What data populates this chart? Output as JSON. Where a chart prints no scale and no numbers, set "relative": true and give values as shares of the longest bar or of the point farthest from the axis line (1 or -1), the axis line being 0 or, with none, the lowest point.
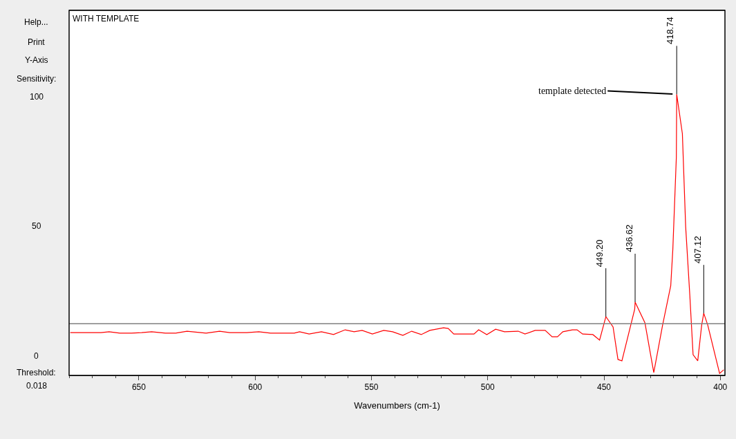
{
  "chart_data": {
    "type": "line",
    "title": "WITH TEMPLATE",
    "xlabel": "Wavenumbers (cm-1)",
    "relative": true,
    "xlim": [
      680,
      398
    ],
    "xticks": [
      650,
      600,
      550,
      500,
      450,
      400
    ],
    "marker": "none",
    "line_style": "solid",
    "x": [
      679.5,
      666.3,
      662.8,
      658.2,
      653.2,
      648.8,
      644.5,
      638.6,
      634.2,
      629.3,
      621.1,
      615.3,
      610.9,
      603.6,
      598.4,
      593.4,
      583.2,
      580.9,
      576.8,
      571.5,
      566.3,
      561.3,
      557.5,
      554.0,
      549.6,
      544.7,
      540.9,
      536.5,
      532.7,
      528.6,
      524.9,
      519.0,
      517.0,
      514.6,
      510.3,
      505.9,
      503.9,
      500.4,
      496.6,
      492.8,
      486.9,
      484.0,
      479.6,
      475.3,
      472.3,
      470.0,
      467.7,
      463.6,
      461.6,
      459.2,
      454.8,
      451.9,
      449.2,
      446.1,
      444.0,
      442.3,
      436.8,
      436.62,
      432.4,
      428.6,
      424.8,
      421.3,
      420.4,
      418.9,
      418.74,
      416.3,
      414.9,
      413.1,
      411.7,
      409.7,
      408.0,
      407.12,
      405.4,
      400.3,
      398.5
    ],
    "series": [
      {
        "color": "#ff0000",
        "values": [
          0.148,
          0.148,
          0.151,
          0.146,
          0.146,
          0.148,
          0.151,
          0.146,
          0.146,
          0.153,
          0.146,
          0.153,
          0.148,
          0.148,
          0.151,
          0.146,
          0.146,
          0.151,
          0.143,
          0.151,
          0.141,
          0.158,
          0.151,
          0.156,
          0.143,
          0.156,
          0.151,
          0.138,
          0.153,
          0.141,
          0.156,
          0.165,
          0.163,
          0.143,
          0.143,
          0.143,
          0.158,
          0.141,
          0.16,
          0.151,
          0.153,
          0.143,
          0.156,
          0.156,
          0.133,
          0.133,
          0.151,
          0.158,
          0.158,
          0.143,
          0.141,
          0.121,
          0.205,
          0.168,
          0.052,
          0.047,
          0.232,
          0.257,
          0.183,
          0.005,
          0.175,
          0.316,
          0.447,
          0.775,
          1.0,
          0.859,
          0.528,
          0.281,
          0.069,
          0.047,
          0.175,
          0.217,
          0.175,
          0.002,
          0.015
        ]
      }
    ],
    "ref_lines": [
      {
        "axis": "y",
        "value": 0.18,
        "color": "#808080"
      }
    ],
    "annotations": [
      {
        "text": "449.20",
        "x": 449.2,
        "y": 0.205
      },
      {
        "text": "436.62",
        "x": 436.62,
        "y": 0.257
      },
      {
        "text": "418.74",
        "x": 418.74,
        "y": 1.0
      },
      {
        "text": "407.12",
        "x": 407.12,
        "y": 0.217
      },
      {
        "text": "template detected",
        "x": 418.74,
        "y": 1.0
      },
      "Help...",
      "Print",
      "Y-Axis",
      "Sensitivity:",
      "100",
      "50",
      "0",
      "Threshold:",
      "0.018"
    ]
  }
}
